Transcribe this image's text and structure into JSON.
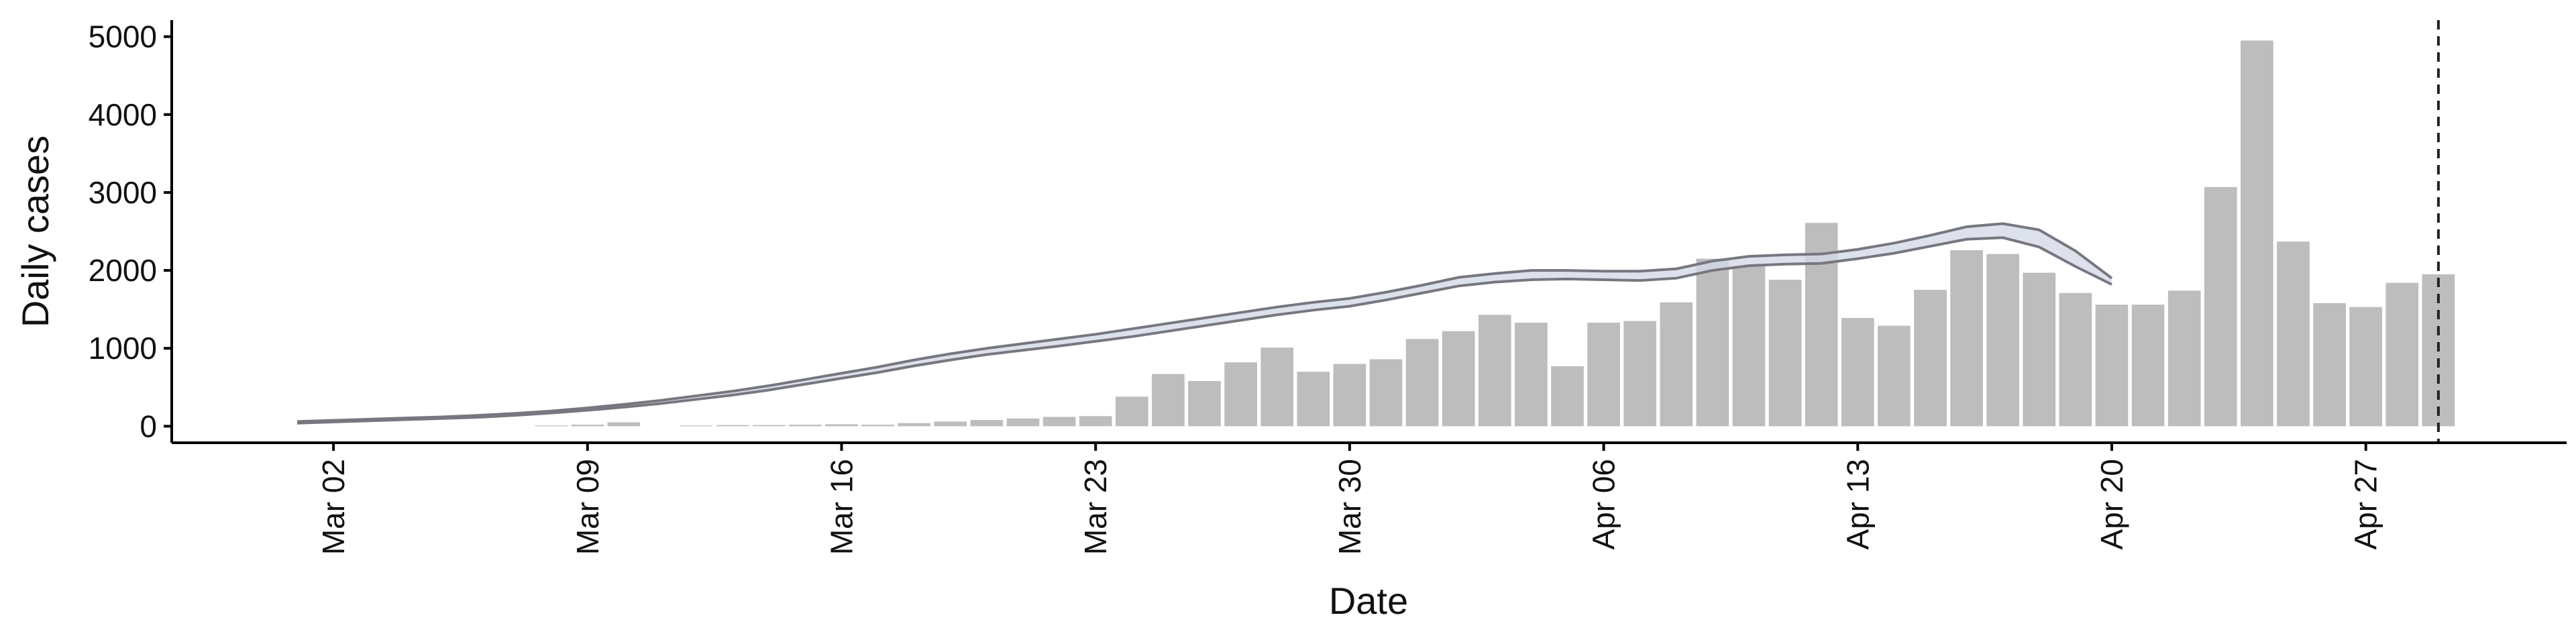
{
  "chart_data": {
    "type": "bar",
    "xlabel": "Date",
    "ylabel": "Daily cases",
    "categories": [
      "Mar 01",
      "Mar 02",
      "Mar 03",
      "Mar 04",
      "Mar 05",
      "Mar 06",
      "Mar 07",
      "Mar 08",
      "Mar 09",
      "Mar 10",
      "Mar 11",
      "Mar 12",
      "Mar 13",
      "Mar 14",
      "Mar 15",
      "Mar 16",
      "Mar 17",
      "Mar 18",
      "Mar 19",
      "Mar 20",
      "Mar 21",
      "Mar 22",
      "Mar 23",
      "Mar 24",
      "Mar 25",
      "Mar 26",
      "Mar 27",
      "Mar 28",
      "Mar 29",
      "Mar 30",
      "Mar 31",
      "Apr 01",
      "Apr 02",
      "Apr 03",
      "Apr 04",
      "Apr 05",
      "Apr 06",
      "Apr 07",
      "Apr 08",
      "Apr 09",
      "Apr 10",
      "Apr 11",
      "Apr 12",
      "Apr 13",
      "Apr 14",
      "Apr 15",
      "Apr 16",
      "Apr 17",
      "Apr 18",
      "Apr 19",
      "Apr 20",
      "Apr 21",
      "Apr 22",
      "Apr 23",
      "Apr 24",
      "Apr 25",
      "Apr 26",
      "Apr 27",
      "Apr 28",
      "Apr 29"
    ],
    "values": [
      0,
      0,
      0,
      0,
      0,
      0,
      0,
      10,
      20,
      50,
      0,
      10,
      15,
      15,
      20,
      25,
      20,
      40,
      60,
      80,
      100,
      120,
      130,
      380,
      670,
      580,
      820,
      1010,
      700,
      800,
      860,
      1120,
      1220,
      1430,
      1330,
      770,
      1330,
      1350,
      1590,
      2150,
      2060,
      1880,
      2610,
      1390,
      1290,
      1750,
      2260,
      2210,
      1970,
      1710,
      1560,
      1560,
      1740,
      3070,
      4950,
      2370,
      1580,
      1530,
      1840,
      1950
    ],
    "color": "#bdbdbd",
    "band_lower": [
      40,
      55,
      70,
      85,
      100,
      115,
      140,
      170,
      205,
      245,
      290,
      345,
      400,
      465,
      540,
      615,
      690,
      775,
      850,
      920,
      975,
      1030,
      1090,
      1150,
      1220,
      1290,
      1360,
      1430,
      1490,
      1540,
      1620,
      1710,
      1800,
      1850,
      1880,
      1890,
      1880,
      1870,
      1900,
      2000,
      2060,
      2080,
      2090,
      2150,
      2220,
      2310,
      2400,
      2420,
      2300,
      2050,
      1820,
      null,
      null,
      null,
      null,
      null,
      null,
      null,
      null,
      null
    ],
    "band_upper": [
      60,
      75,
      90,
      105,
      120,
      140,
      165,
      195,
      235,
      280,
      330,
      390,
      450,
      520,
      600,
      680,
      760,
      850,
      930,
      1000,
      1060,
      1120,
      1180,
      1250,
      1320,
      1390,
      1460,
      1530,
      1590,
      1640,
      1720,
      1810,
      1910,
      1960,
      2000,
      2000,
      1990,
      1990,
      2020,
      2120,
      2180,
      2200,
      2210,
      2270,
      2350,
      2450,
      2560,
      2600,
      2520,
      2250,
      1900,
      null,
      null,
      null,
      null,
      null,
      null,
      null,
      null,
      null
    ],
    "band_color": "#d5d9e6",
    "line_color": "#77777f",
    "vline": "Apr 29",
    "xticks": [
      "Mar 02",
      "Mar 09",
      "Mar 16",
      "Mar 23",
      "Mar 30",
      "Apr 06",
      "Apr 13",
      "Apr 20",
      "Apr 27"
    ],
    "ylim": [
      -212,
      5212
    ],
    "yticks": [
      0,
      1000,
      2000,
      3000,
      4000,
      5000
    ]
  }
}
